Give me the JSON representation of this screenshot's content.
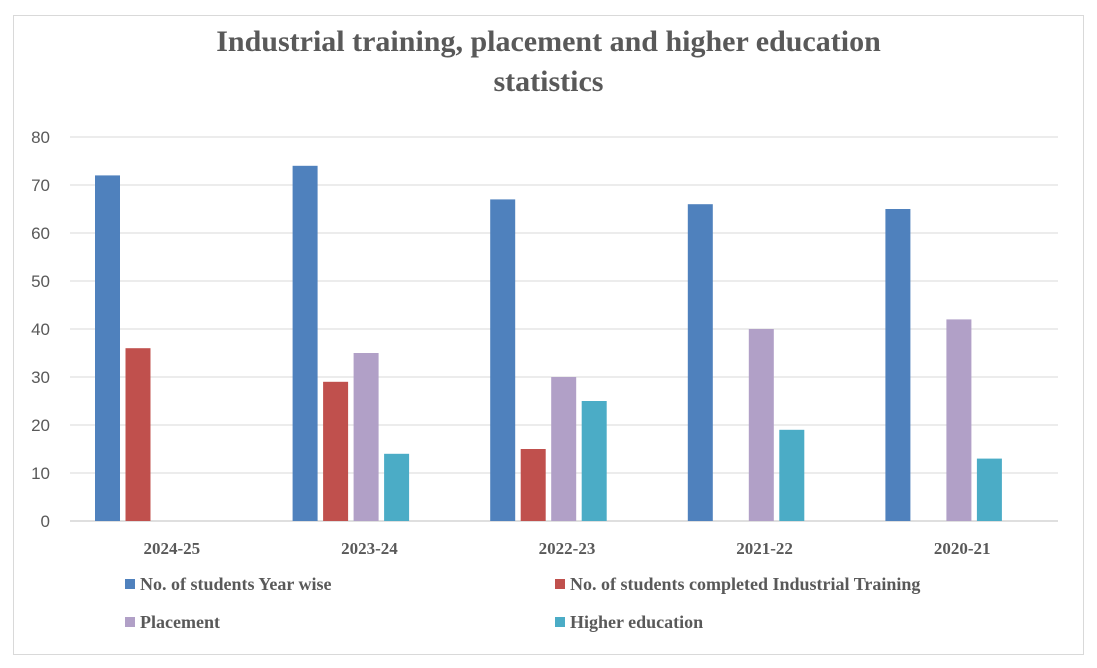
{
  "chart_data": {
    "type": "bar",
    "title": "Industrial training, placement and higher education statistics",
    "title_lines": [
      "Industrial training, placement and higher education",
      "statistics"
    ],
    "categories": [
      "2024-25",
      "2023-24",
      "2022-23",
      "2021-22",
      "2020-21"
    ],
    "series": [
      {
        "name": "No. of students Year wise",
        "color": "#4f81bd",
        "values": [
          72,
          74,
          67,
          66,
          65
        ]
      },
      {
        "name": "No. of students completed Industrial Training",
        "color": "#c0504d",
        "values": [
          36,
          29,
          15,
          0,
          0
        ]
      },
      {
        "name": "Placement",
        "color": "#b1a0c7",
        "values": [
          0,
          35,
          30,
          40,
          42
        ]
      },
      {
        "name": "Higher education",
        "color": "#4bacc6",
        "values": [
          0,
          14,
          25,
          19,
          13
        ]
      }
    ],
    "ylim": [
      0,
      80
    ],
    "yticks": [
      0,
      10,
      20,
      30,
      40,
      50,
      60,
      70,
      80
    ],
    "grid": true,
    "legend": "bottom",
    "xlabel": "",
    "ylabel": ""
  }
}
